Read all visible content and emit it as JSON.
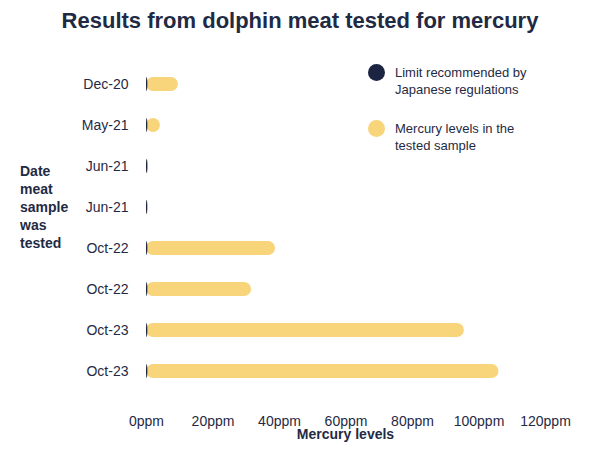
{
  "chart_data": {
    "type": "bar",
    "orientation": "horizontal",
    "title": "Results from dolphin meat tested for mercury",
    "x_label": "Mercury levels",
    "y_label": "Date meat sample was tested",
    "categories": [
      "Dec-20",
      "May-21",
      "Jun-21",
      "Jun-21",
      "Oct-22",
      "Oct-22",
      "Oct-23",
      "Oct-23"
    ],
    "series": [
      {
        "name": "Limit recommended by Japanese regulations",
        "color": "#1b2542",
        "values": [
          0.4,
          0.4,
          0.4,
          0.4,
          0.4,
          0.4,
          0.4,
          0.4
        ]
      },
      {
        "name": "Mercury levels in the tested sample",
        "color": "#f8d47a",
        "values": [
          9.6,
          4.2,
          0.6,
          0.3,
          38.8,
          31.6,
          95.6,
          106
        ]
      }
    ],
    "xlim": [
      0,
      120
    ],
    "xticks": [
      {
        "value": 0,
        "label": "0ppm"
      },
      {
        "value": 20,
        "label": "20ppm"
      },
      {
        "value": 40,
        "label": "40ppm"
      },
      {
        "value": 60,
        "label": "60ppm"
      },
      {
        "value": 80,
        "label": "80ppm"
      },
      {
        "value": 100,
        "label": "100ppm"
      },
      {
        "value": 120,
        "label": "120ppm"
      }
    ],
    "grid": false,
    "legend": "top-right",
    "stacked": false
  }
}
